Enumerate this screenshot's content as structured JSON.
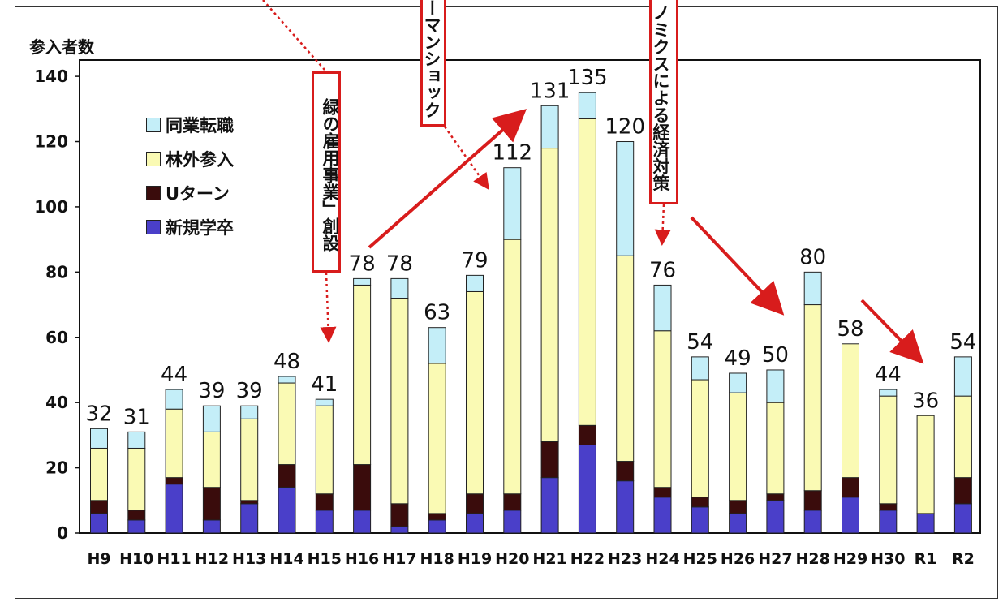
{
  "chart_data": {
    "type": "bar",
    "stacked": true,
    "ylabel": "参入者数",
    "ylim": [
      0,
      145
    ],
    "yticks": [
      0,
      20,
      40,
      60,
      80,
      100,
      120,
      140
    ],
    "categories": [
      "H9",
      "H10",
      "H11",
      "H12",
      "H13",
      "H14",
      "H15",
      "H16",
      "H17",
      "H18",
      "H19",
      "H20",
      "H21",
      "H22",
      "H23",
      "H24",
      "H25",
      "H26",
      "H27",
      "H28",
      "H29",
      "H30",
      "R1",
      "R2"
    ],
    "totals": [
      32,
      31,
      44,
      39,
      39,
      48,
      41,
      78,
      78,
      63,
      79,
      112,
      131,
      135,
      120,
      76,
      54,
      49,
      50,
      80,
      58,
      44,
      36,
      54
    ],
    "series": [
      {
        "name": "新規学卒",
        "color": "#4a3fc9",
        "values": [
          6,
          4,
          15,
          4,
          9,
          14,
          7,
          7,
          2,
          4,
          6,
          7,
          17,
          27,
          16,
          11,
          8,
          6,
          10,
          7,
          11,
          7,
          6,
          9
        ]
      },
      {
        "name": "Uターン",
        "color": "#3a0c0c",
        "values": [
          4,
          3,
          2,
          10,
          1,
          7,
          5,
          14,
          7,
          2,
          6,
          5,
          11,
          6,
          6,
          3,
          3,
          4,
          2,
          6,
          6,
          2,
          0,
          8
        ]
      },
      {
        "name": "林外参入",
        "color": "#fafab4",
        "values": [
          16,
          19,
          21,
          17,
          25,
          25,
          27,
          55,
          63,
          46,
          62,
          78,
          90,
          94,
          63,
          48,
          36,
          33,
          28,
          57,
          41,
          33,
          30,
          25
        ]
      },
      {
        "name": "同業転職",
        "color": "#c4eef8",
        "values": [
          6,
          5,
          6,
          8,
          4,
          2,
          2,
          2,
          6,
          11,
          5,
          22,
          13,
          8,
          35,
          14,
          7,
          6,
          10,
          10,
          0,
          2,
          0,
          12
        ]
      }
    ],
    "legend": [
      "同業転職",
      "林外参入",
      "Uターン",
      "新規学卒"
    ],
    "legend_position": "top-left",
    "grid": false,
    "annotations": [
      {
        "text": "緑の雇用事業」創設"
      },
      {
        "text": "ーマンショック"
      },
      {
        "text": "ノミクスによる経済対策"
      }
    ]
  }
}
